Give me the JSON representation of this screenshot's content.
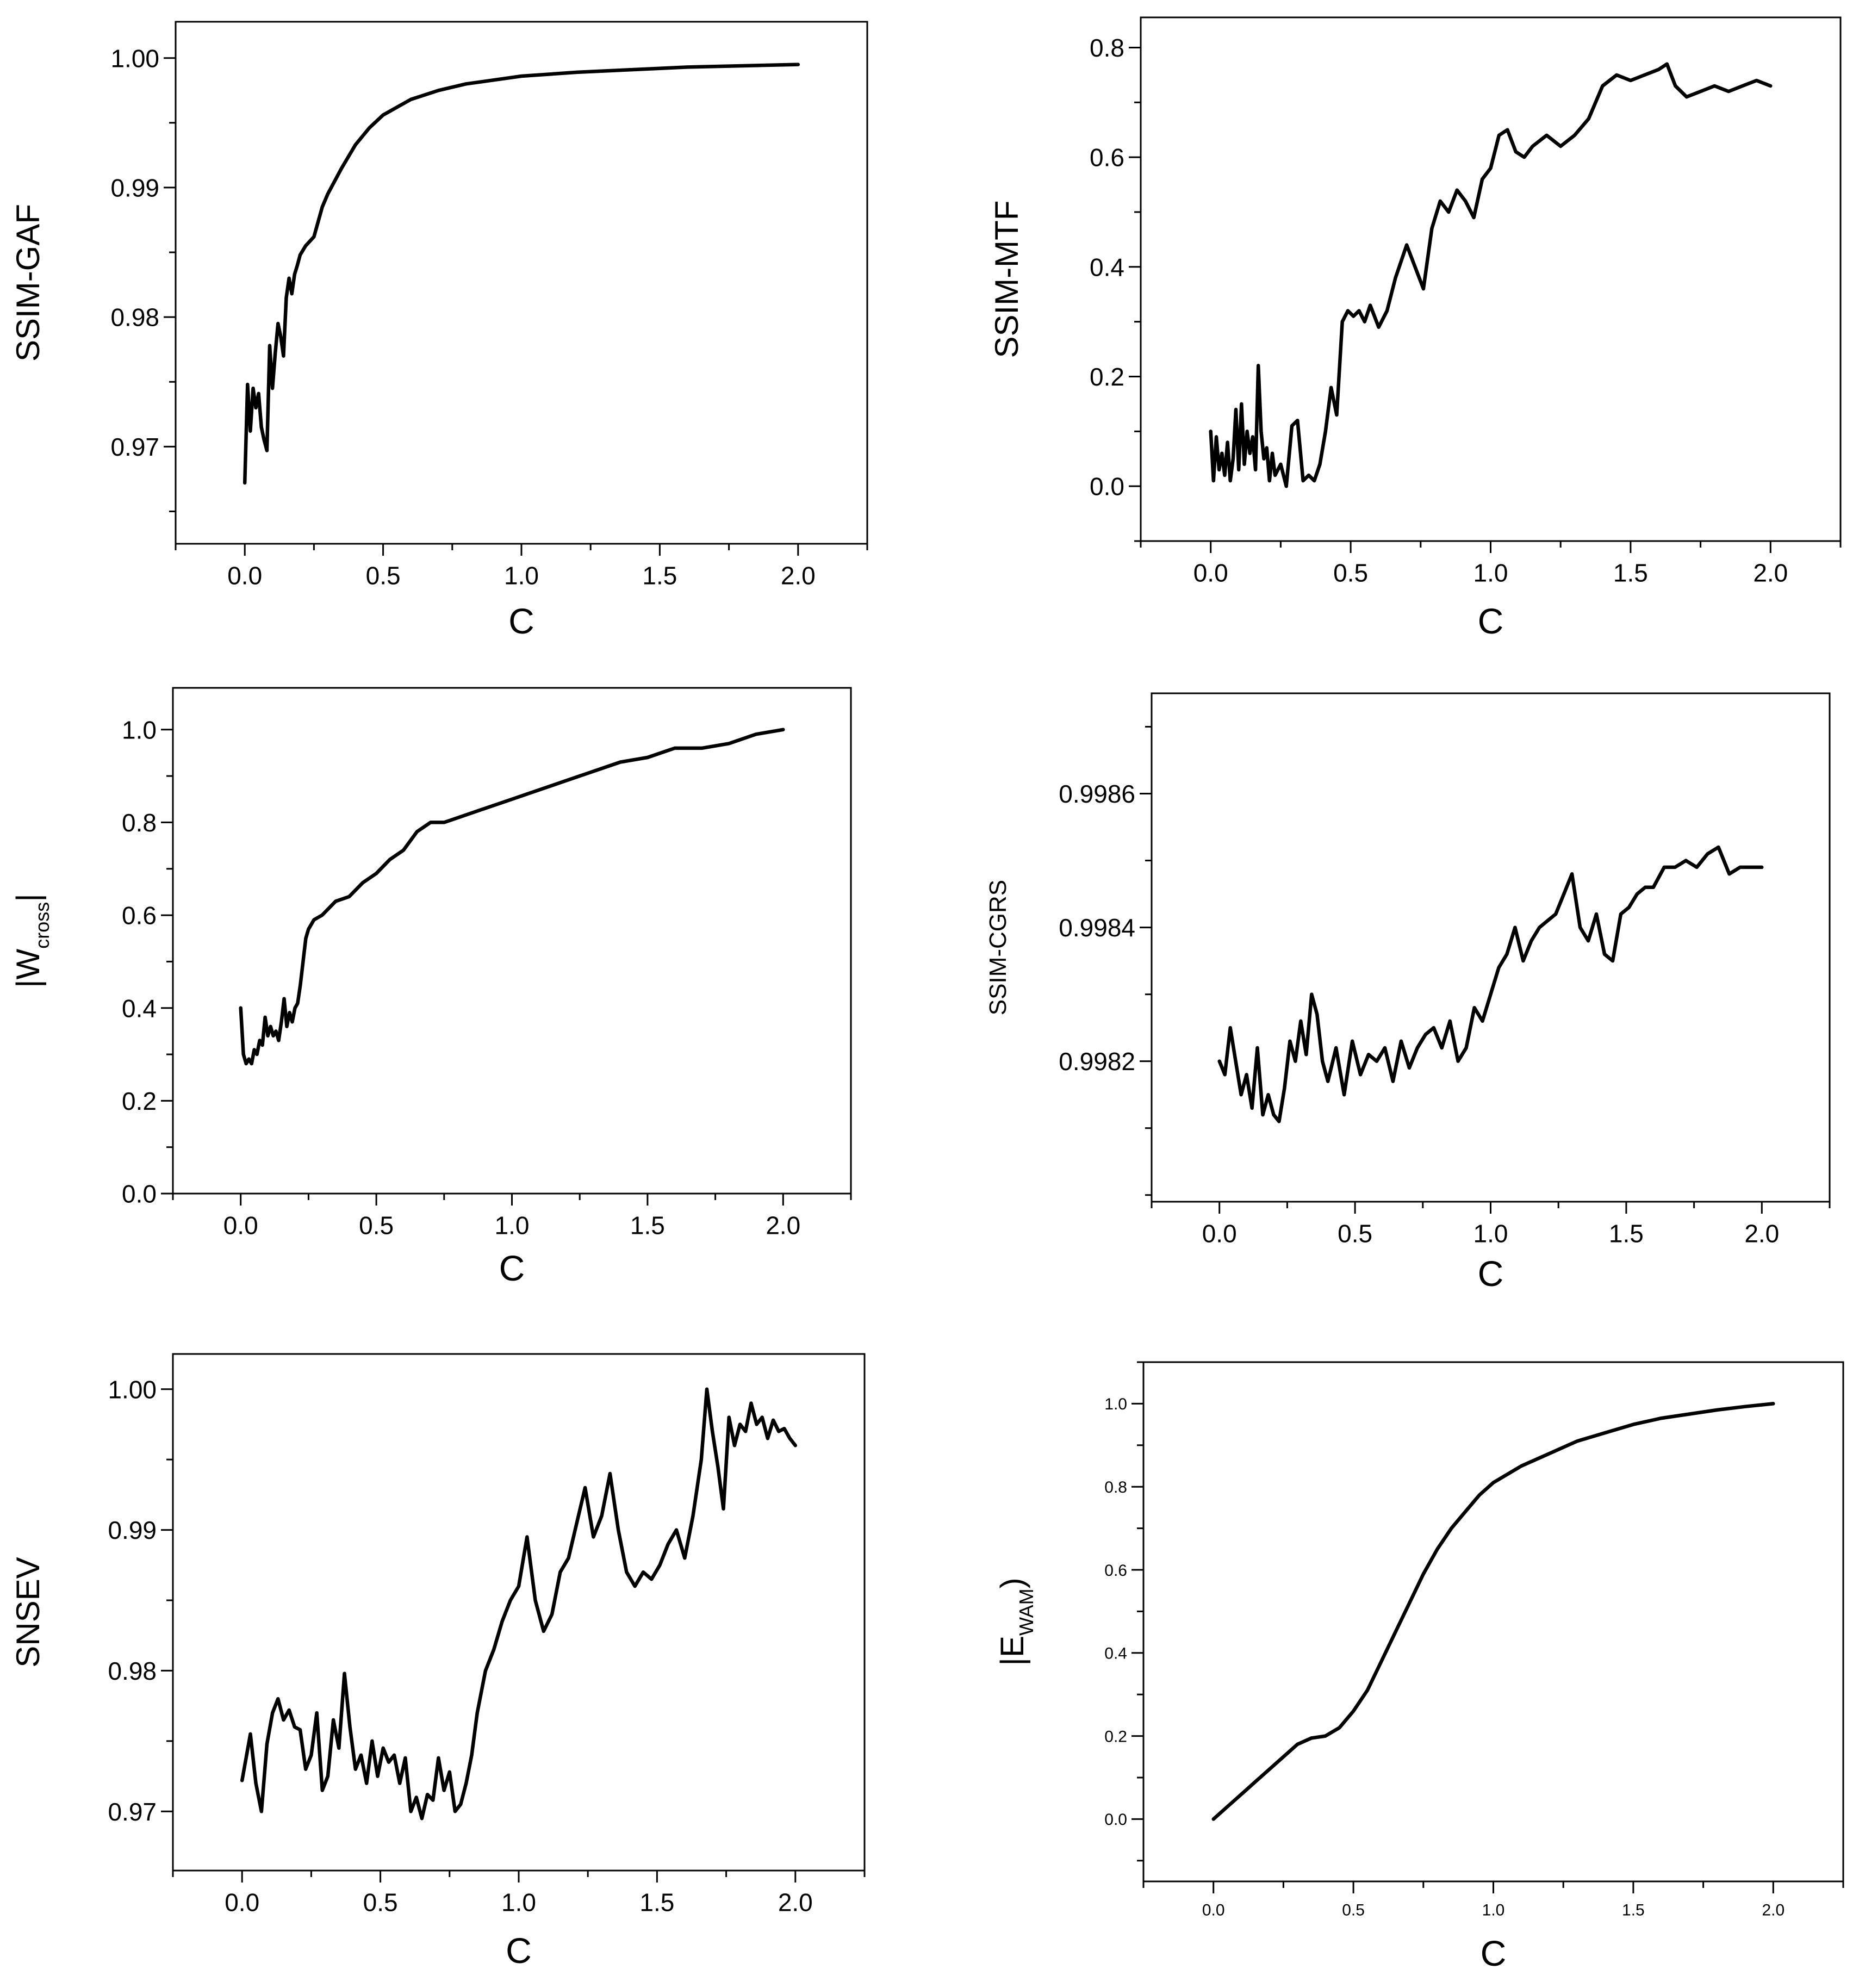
{
  "chart_data": [
    {
      "id": "p1",
      "type": "line",
      "xlabel": "C",
      "ylabel": "SSIM-GAF",
      "xlim": [
        -0.25,
        2.25
      ],
      "ylim": [
        0.9625,
        1.0028
      ],
      "xticks": [
        0.0,
        0.5,
        1.0,
        1.5,
        2.0
      ],
      "xtick_labels": [
        "0.0",
        "0.5",
        "1.0",
        "1.5",
        "2.0"
      ],
      "yticks": [
        0.97,
        0.98,
        0.99,
        1.0
      ],
      "ytick_labels": [
        "0.97",
        "0.98",
        "0.99",
        "1.00"
      ],
      "series": [
        {
          "name": "SSIM-GAF",
          "x": [
            0.0,
            0.01,
            0.02,
            0.03,
            0.04,
            0.05,
            0.06,
            0.07,
            0.08,
            0.09,
            0.1,
            0.11,
            0.12,
            0.13,
            0.14,
            0.15,
            0.16,
            0.17,
            0.18,
            0.19,
            0.2,
            0.22,
            0.25,
            0.28,
            0.3,
            0.35,
            0.4,
            0.45,
            0.5,
            0.6,
            0.7,
            0.8,
            0.9,
            1.0,
            1.2,
            1.4,
            1.6,
            1.8,
            2.0
          ],
          "values": [
            0.9672,
            0.9748,
            0.9712,
            0.9745,
            0.973,
            0.9741,
            0.9715,
            0.9705,
            0.9697,
            0.9778,
            0.9745,
            0.9772,
            0.9795,
            0.9785,
            0.977,
            0.9815,
            0.983,
            0.9818,
            0.9833,
            0.984,
            0.9848,
            0.9855,
            0.9862,
            0.9885,
            0.9895,
            0.9915,
            0.9933,
            0.9946,
            0.9956,
            0.9968,
            0.9975,
            0.998,
            0.9983,
            0.9986,
            0.9989,
            0.9991,
            0.9993,
            0.9994,
            0.9995
          ]
        }
      ]
    },
    {
      "id": "p2",
      "type": "line",
      "xlabel": "C",
      "ylabel": "SSIM-MTF",
      "xlim": [
        -0.25,
        2.25
      ],
      "ylim": [
        -0.1,
        0.855
      ],
      "xticks": [
        0.0,
        0.5,
        1.0,
        1.5,
        2.0
      ],
      "xtick_labels": [
        "0.0",
        "0.5",
        "1.0",
        "1.5",
        "2.0"
      ],
      "yticks": [
        0.0,
        0.2,
        0.4,
        0.6,
        0.8
      ],
      "ytick_labels": [
        "0.0",
        "0.2",
        "0.4",
        "0.6",
        "0.8"
      ],
      "series": [
        {
          "name": "SSIM-MTF",
          "x": [
            0.0,
            0.01,
            0.02,
            0.03,
            0.04,
            0.05,
            0.06,
            0.07,
            0.08,
            0.09,
            0.1,
            0.11,
            0.12,
            0.13,
            0.14,
            0.15,
            0.16,
            0.17,
            0.18,
            0.19,
            0.2,
            0.21,
            0.22,
            0.23,
            0.25,
            0.27,
            0.29,
            0.31,
            0.33,
            0.35,
            0.37,
            0.39,
            0.41,
            0.43,
            0.45,
            0.47,
            0.49,
            0.51,
            0.53,
            0.55,
            0.57,
            0.6,
            0.63,
            0.66,
            0.7,
            0.73,
            0.76,
            0.79,
            0.82,
            0.85,
            0.88,
            0.91,
            0.94,
            0.97,
            1.0,
            1.03,
            1.06,
            1.09,
            1.12,
            1.15,
            1.2,
            1.25,
            1.3,
            1.35,
            1.4,
            1.45,
            1.5,
            1.55,
            1.6,
            1.63,
            1.66,
            1.7,
            1.75,
            1.8,
            1.85,
            1.9,
            1.95,
            2.0
          ],
          "values": [
            0.1,
            0.01,
            0.09,
            0.03,
            0.06,
            0.02,
            0.08,
            0.01,
            0.05,
            0.14,
            0.03,
            0.15,
            0.04,
            0.1,
            0.06,
            0.09,
            0.03,
            0.22,
            0.1,
            0.05,
            0.07,
            0.01,
            0.06,
            0.02,
            0.04,
            0.0,
            0.11,
            0.12,
            0.01,
            0.02,
            0.01,
            0.04,
            0.1,
            0.18,
            0.13,
            0.3,
            0.32,
            0.31,
            0.32,
            0.3,
            0.33,
            0.29,
            0.32,
            0.38,
            0.44,
            0.4,
            0.36,
            0.47,
            0.52,
            0.5,
            0.54,
            0.52,
            0.49,
            0.56,
            0.58,
            0.64,
            0.65,
            0.61,
            0.6,
            0.62,
            0.64,
            0.62,
            0.64,
            0.67,
            0.73,
            0.75,
            0.74,
            0.75,
            0.76,
            0.77,
            0.73,
            0.71,
            0.72,
            0.73,
            0.72,
            0.73,
            0.74,
            0.73
          ]
        }
      ]
    },
    {
      "id": "p3",
      "type": "line",
      "xlabel": "C",
      "ylabel": "|W",
      "ylabel_subscript": "cross",
      "ylabel_suffix": "|",
      "xlim": [
        -0.25,
        2.25
      ],
      "ylim": [
        0.0,
        1.09
      ],
      "xticks": [
        0.0,
        0.5,
        1.0,
        1.5,
        2.0
      ],
      "xtick_labels": [
        "0.0",
        "0.5",
        "1.0",
        "1.5",
        "2.0"
      ],
      "yticks": [
        0.0,
        0.2,
        0.4,
        0.6,
        0.8,
        1.0
      ],
      "ytick_labels": [
        "0.0",
        "0.2",
        "0.4",
        "0.6",
        "0.8",
        "1.0"
      ],
      "series": [
        {
          "name": "|Wcross|",
          "x": [
            0.0,
            0.01,
            0.02,
            0.03,
            0.04,
            0.05,
            0.06,
            0.07,
            0.08,
            0.09,
            0.1,
            0.11,
            0.12,
            0.13,
            0.14,
            0.15,
            0.16,
            0.17,
            0.18,
            0.19,
            0.2,
            0.21,
            0.22,
            0.23,
            0.24,
            0.25,
            0.27,
            0.3,
            0.35,
            0.4,
            0.45,
            0.5,
            0.55,
            0.6,
            0.65,
            0.7,
            0.75,
            0.8,
            0.9,
            1.0,
            1.1,
            1.2,
            1.3,
            1.4,
            1.5,
            1.6,
            1.7,
            1.8,
            1.9,
            2.0
          ],
          "values": [
            0.4,
            0.3,
            0.28,
            0.29,
            0.28,
            0.31,
            0.3,
            0.33,
            0.32,
            0.38,
            0.34,
            0.36,
            0.34,
            0.35,
            0.33,
            0.37,
            0.42,
            0.36,
            0.39,
            0.37,
            0.4,
            0.41,
            0.45,
            0.5,
            0.55,
            0.57,
            0.59,
            0.6,
            0.63,
            0.64,
            0.67,
            0.69,
            0.72,
            0.74,
            0.78,
            0.8,
            0.8,
            0.81,
            0.83,
            0.85,
            0.87,
            0.89,
            0.91,
            0.93,
            0.94,
            0.96,
            0.96,
            0.97,
            0.99,
            1.0
          ]
        }
      ]
    },
    {
      "id": "p4",
      "type": "line",
      "xlabel": "C",
      "ylabel": "SSIM-CGRS",
      "xlim": [
        -0.25,
        2.25
      ],
      "ylim": [
        0.99799,
        0.99875
      ],
      "xticks": [
        0.0,
        0.5,
        1.0,
        1.5,
        2.0
      ],
      "xtick_labels": [
        "0.0",
        "0.5",
        "1.0",
        "1.5",
        "2.0"
      ],
      "yticks": [
        0.9982,
        0.9984,
        0.9986
      ],
      "ytick_labels": [
        "0.9982",
        "0.9984",
        "0.9986"
      ],
      "series": [
        {
          "name": "SSIM-CGRS",
          "x": [
            0.0,
            0.02,
            0.04,
            0.06,
            0.08,
            0.1,
            0.12,
            0.14,
            0.16,
            0.18,
            0.2,
            0.22,
            0.24,
            0.26,
            0.28,
            0.3,
            0.32,
            0.34,
            0.36,
            0.38,
            0.4,
            0.43,
            0.46,
            0.49,
            0.52,
            0.55,
            0.58,
            0.61,
            0.64,
            0.67,
            0.7,
            0.73,
            0.76,
            0.79,
            0.82,
            0.85,
            0.88,
            0.91,
            0.94,
            0.97,
            1.0,
            1.03,
            1.06,
            1.09,
            1.12,
            1.15,
            1.18,
            1.21,
            1.24,
            1.27,
            1.3,
            1.33,
            1.36,
            1.39,
            1.42,
            1.45,
            1.48,
            1.51,
            1.54,
            1.57,
            1.6,
            1.64,
            1.68,
            1.72,
            1.76,
            1.8,
            1.84,
            1.88,
            1.92,
            1.96,
            2.0
          ],
          "values": [
            0.9982,
            0.99818,
            0.99825,
            0.9982,
            0.99815,
            0.99818,
            0.99813,
            0.99822,
            0.99812,
            0.99815,
            0.99812,
            0.99811,
            0.99816,
            0.99823,
            0.9982,
            0.99826,
            0.99821,
            0.9983,
            0.99827,
            0.9982,
            0.99817,
            0.99822,
            0.99815,
            0.99823,
            0.99818,
            0.99821,
            0.9982,
            0.99822,
            0.99817,
            0.99823,
            0.99819,
            0.99822,
            0.99824,
            0.99825,
            0.99822,
            0.99826,
            0.9982,
            0.99822,
            0.99828,
            0.99826,
            0.9983,
            0.99834,
            0.99836,
            0.9984,
            0.99835,
            0.99838,
            0.9984,
            0.99841,
            0.99842,
            0.99845,
            0.99848,
            0.9984,
            0.99838,
            0.99842,
            0.99836,
            0.99835,
            0.99842,
            0.99843,
            0.99845,
            0.99846,
            0.99846,
            0.99849,
            0.99849,
            0.9985,
            0.99849,
            0.99851,
            0.99852,
            0.99848,
            0.99849,
            0.99849,
            0.99849
          ]
        }
      ]
    },
    {
      "id": "p5",
      "type": "line",
      "xlabel": "C",
      "ylabel": "SNSEV",
      "xlim": [
        -0.25,
        2.25
      ],
      "ylim": [
        0.9658,
        1.0025
      ],
      "xticks": [
        0.0,
        0.5,
        1.0,
        1.5,
        2.0
      ],
      "xtick_labels": [
        "0.0",
        "0.5",
        "1.0",
        "1.5",
        "2.0"
      ],
      "yticks": [
        0.97,
        0.98,
        0.99,
        1.0
      ],
      "ytick_labels": [
        "0.97",
        "0.98",
        "0.99",
        "1.00"
      ],
      "series": [
        {
          "name": "SNSEV",
          "x": [
            0.0,
            0.03,
            0.05,
            0.07,
            0.09,
            0.11,
            0.13,
            0.15,
            0.17,
            0.19,
            0.21,
            0.23,
            0.25,
            0.27,
            0.29,
            0.31,
            0.33,
            0.35,
            0.37,
            0.39,
            0.41,
            0.43,
            0.45,
            0.47,
            0.49,
            0.51,
            0.53,
            0.55,
            0.57,
            0.59,
            0.61,
            0.63,
            0.65,
            0.67,
            0.69,
            0.71,
            0.73,
            0.75,
            0.77,
            0.79,
            0.81,
            0.83,
            0.85,
            0.88,
            0.91,
            0.94,
            0.97,
            1.0,
            1.03,
            1.06,
            1.09,
            1.12,
            1.15,
            1.18,
            1.21,
            1.24,
            1.27,
            1.3,
            1.33,
            1.36,
            1.39,
            1.42,
            1.45,
            1.48,
            1.51,
            1.54,
            1.57,
            1.6,
            1.63,
            1.66,
            1.68,
            1.7,
            1.72,
            1.74,
            1.76,
            1.78,
            1.8,
            1.82,
            1.84,
            1.86,
            1.88,
            1.9,
            1.92,
            1.94,
            1.96,
            1.98,
            2.0
          ],
          "values": [
            0.9722,
            0.9755,
            0.972,
            0.97,
            0.9748,
            0.977,
            0.978,
            0.9765,
            0.9772,
            0.976,
            0.9758,
            0.973,
            0.974,
            0.977,
            0.9715,
            0.9725,
            0.9765,
            0.9745,
            0.9798,
            0.976,
            0.973,
            0.974,
            0.972,
            0.975,
            0.9725,
            0.9745,
            0.9735,
            0.974,
            0.972,
            0.9738,
            0.97,
            0.971,
            0.9695,
            0.9712,
            0.9708,
            0.9738,
            0.9715,
            0.9728,
            0.97,
            0.9705,
            0.972,
            0.974,
            0.977,
            0.98,
            0.9815,
            0.9835,
            0.985,
            0.986,
            0.9895,
            0.985,
            0.9828,
            0.984,
            0.987,
            0.988,
            0.9905,
            0.993,
            0.9895,
            0.991,
            0.994,
            0.99,
            0.987,
            0.986,
            0.987,
            0.9865,
            0.9875,
            0.989,
            0.99,
            0.988,
            0.991,
            0.995,
            1.0,
            0.997,
            0.9945,
            0.9915,
            0.998,
            0.996,
            0.9975,
            0.997,
            0.999,
            0.9975,
            0.998,
            0.9965,
            0.9978,
            0.997,
            0.9972,
            0.9965,
            0.996
          ]
        }
      ]
    },
    {
      "id": "p6",
      "type": "line",
      "xlabel": "C",
      "ylabel": "|E",
      "ylabel_subscript": "WAM",
      "ylabel_suffix": ")",
      "xlim": [
        -0.25,
        2.25
      ],
      "ylim": [
        -0.15,
        1.1
      ],
      "xticks": [
        0.0,
        0.5,
        1.0,
        1.5,
        2.0
      ],
      "xtick_labels": [
        "0.0",
        "0.5",
        "1.0",
        "1.5",
        "2.0"
      ],
      "yticks": [
        0.0,
        0.2,
        0.4,
        0.6,
        0.8,
        1.0
      ],
      "ytick_labels": [
        "0.0",
        "0.2",
        "0.4",
        "0.6",
        "0.8",
        "1.0"
      ],
      "series": [
        {
          "name": "|EWAM)",
          "x": [
            0.0,
            0.05,
            0.1,
            0.15,
            0.2,
            0.25,
            0.3,
            0.35,
            0.4,
            0.45,
            0.5,
            0.55,
            0.6,
            0.65,
            0.7,
            0.75,
            0.8,
            0.85,
            0.9,
            0.95,
            1.0,
            1.1,
            1.2,
            1.3,
            1.4,
            1.5,
            1.6,
            1.7,
            1.8,
            1.9,
            2.0
          ],
          "values": [
            0.0,
            0.03,
            0.06,
            0.09,
            0.12,
            0.15,
            0.18,
            0.195,
            0.2,
            0.22,
            0.26,
            0.31,
            0.38,
            0.45,
            0.52,
            0.59,
            0.65,
            0.7,
            0.74,
            0.78,
            0.81,
            0.85,
            0.88,
            0.91,
            0.93,
            0.95,
            0.965,
            0.975,
            0.985,
            0.993,
            1.0
          ]
        }
      ]
    }
  ]
}
